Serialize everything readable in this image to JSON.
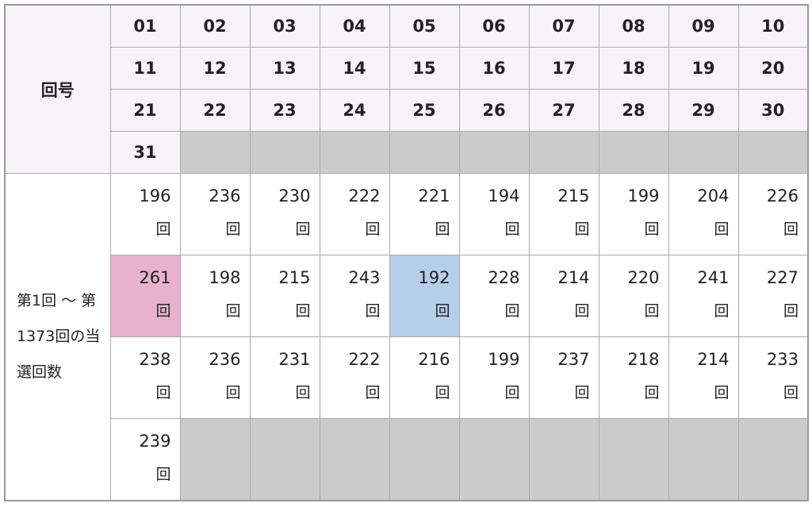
{
  "header_label": "回号",
  "body_label": "第1回 ～ 第1373回の当選回数",
  "unit": "回",
  "draw_numbers": [
    "01",
    "02",
    "03",
    "04",
    "05",
    "06",
    "07",
    "08",
    "09",
    "10",
    "11",
    "12",
    "13",
    "14",
    "15",
    "16",
    "17",
    "18",
    "19",
    "20",
    "21",
    "22",
    "23",
    "24",
    "25",
    "26",
    "27",
    "28",
    "29",
    "30",
    "31"
  ],
  "counts": [
    196,
    236,
    230,
    222,
    221,
    194,
    215,
    199,
    204,
    226,
    261,
    198,
    215,
    243,
    192,
    228,
    214,
    220,
    241,
    227,
    238,
    236,
    231,
    222,
    216,
    199,
    237,
    218,
    214,
    233,
    239
  ],
  "highlight": {
    "max_number": "11",
    "max_color": "#e8b2ce",
    "min_number": "15",
    "min_color": "#b5cfea"
  },
  "colors": {
    "header_bg": "#f7f3f9",
    "empty_bg": "#cbcbcb"
  }
}
